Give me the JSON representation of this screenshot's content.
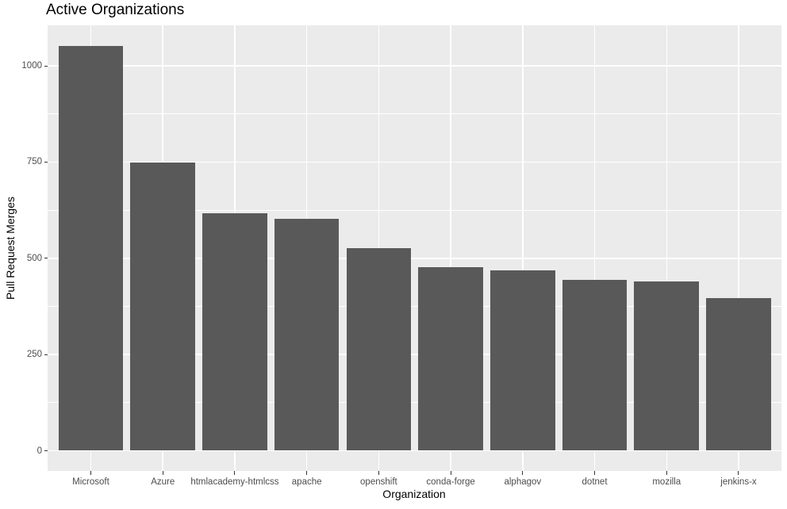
{
  "chart_data": {
    "type": "bar",
    "title": "Active Organizations",
    "xlabel": "Organization",
    "ylabel": "Pull Request Merges",
    "categories": [
      "Microsoft",
      "Azure",
      "htmlacademy-htmlcss",
      "apache",
      "openshift",
      "conda-forge",
      "alphagov",
      "dotnet",
      "mozilla",
      "jenkins-x"
    ],
    "values": [
      1052,
      749,
      617,
      603,
      526,
      476,
      469,
      444,
      439,
      396
    ],
    "ylim": [
      0,
      1055
    ],
    "yticks": [
      0,
      250,
      500,
      750,
      1000
    ],
    "ytick_labels": [
      "0",
      "250",
      "500",
      "750",
      "1000"
    ],
    "yticks_minor": [
      125,
      375,
      625,
      875
    ],
    "grid": true,
    "legend": "none",
    "colors": {
      "bar_fill": "#595959",
      "panel_bg": "#EBEBEB",
      "grid_major": "#FFFFFF",
      "grid_minor": "#FFFFFF",
      "tick_mark": "#333333",
      "tick_label": "#4D4D4D",
      "axis_title": "#000000",
      "background": "#FFFFFF"
    }
  }
}
